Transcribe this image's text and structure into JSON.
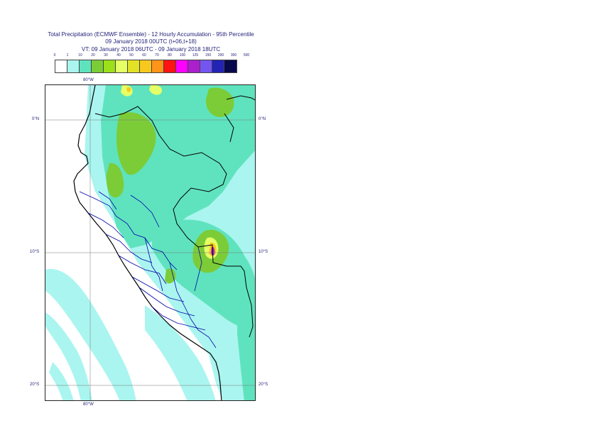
{
  "header": {
    "line1": "Total Precipitation (ECMWF Ensemble) - 12 Hourly Accumulation - 95th Percentile",
    "line2": "09 January 2018 00UTC (t+06,t+18)",
    "line3": "VT: 09 January 2018 06UTC - 09 January 2018 18UTC"
  },
  "legend": {
    "labels": [
      "0",
      "1",
      "10",
      "20",
      "30",
      "40",
      "50",
      "60",
      "70",
      "80",
      "100",
      "125",
      "150",
      "200",
      "300",
      "500"
    ],
    "colors": [
      "#ffffff",
      "#aaf5ef",
      "#5fe3be",
      "#7ccc38",
      "#9ce019",
      "#e5ff66",
      "#e1e126",
      "#f7c81e",
      "#ff9419",
      "#ff1414",
      "#ff00ff",
      "#ab20cc",
      "#7455f0",
      "#2323b5",
      "#08084d"
    ]
  },
  "map": {
    "lon_labels": {
      "top": "80°W",
      "bottom": "80°W"
    },
    "lat_labels": {
      "eq_left": "0°N",
      "eq_right": "0°N",
      "s10_left": "10°S",
      "s10_right": "10°S",
      "s20_left": "20°S",
      "s20_right": "20°S"
    },
    "colors": {
      "coast": "#000000",
      "borders": "#0000aa",
      "grid": "#555555"
    }
  }
}
